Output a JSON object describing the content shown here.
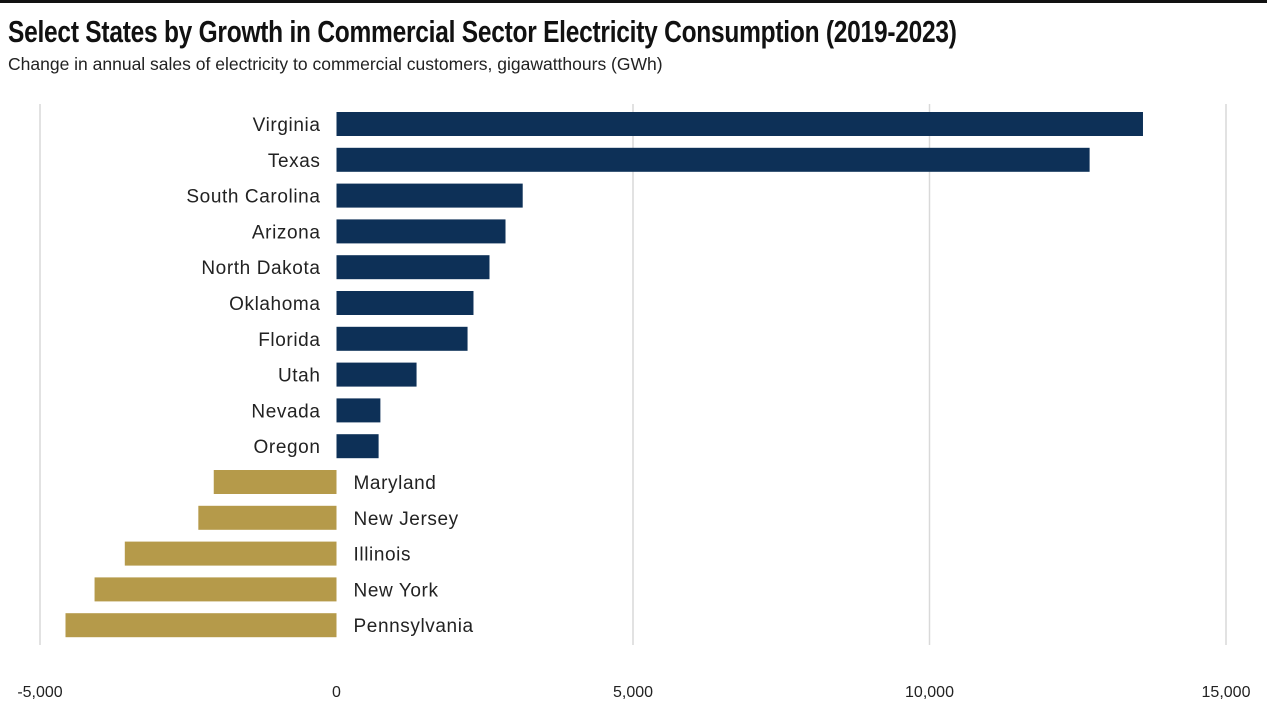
{
  "chart_data": {
    "type": "bar",
    "orientation": "horizontal",
    "title": "Select States by Growth in Commercial Sector Electricity Consumption (2019-2023)",
    "subtitle": "Change in annual sales of electricity to commercial customers, gigawatthours (GWh)",
    "xlabel": "",
    "ylabel": "",
    "xlim": [
      -5000,
      15000
    ],
    "xticks": [
      -5000,
      0,
      5000,
      10000,
      15000
    ],
    "xtick_labels": [
      "-5,000",
      "0",
      "5,000",
      "10,000",
      "15,000"
    ],
    "grid": true,
    "categories": [
      "Virginia",
      "Texas",
      "South Carolina",
      "Arizona",
      "North Dakota",
      "Oklahoma",
      "Florida",
      "Utah",
      "Nevada",
      "Oregon",
      "Maryland",
      "New Jersey",
      "Illinois",
      "New York",
      "Pennsylvania"
    ],
    "values": [
      13600,
      12700,
      3140,
      2850,
      2580,
      2310,
      2210,
      1350,
      740,
      710,
      -2070,
      -2330,
      -3570,
      -4080,
      -4570
    ],
    "colors": {
      "positive": "#0d3057",
      "negative": "#b59a4a",
      "grid": "#d9d9d9"
    }
  }
}
